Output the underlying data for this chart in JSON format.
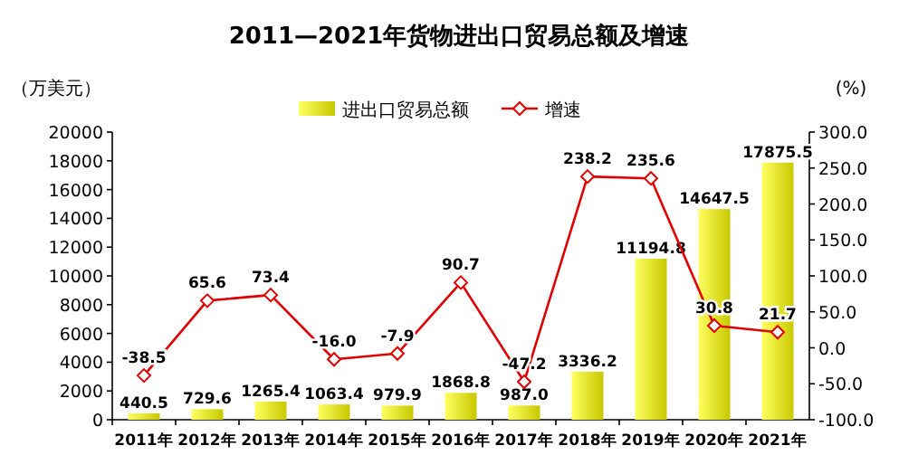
{
  "chart_data": {
    "type": "bar",
    "title": "2011—2021年货物进出口贸易总额及增速",
    "ylabel": "（万美元）",
    "y2label": "(%)",
    "categories": [
      "2011年",
      "2012年",
      "2013年",
      "2014年",
      "2015年",
      "2016年",
      "2017年",
      "2018年",
      "2019年",
      "2020年",
      "2021年"
    ],
    "series": [
      {
        "name": "进出口贸易总额",
        "color": "#c8c800",
        "values": [
          440.5,
          729.6,
          1265.4,
          1063.4,
          979.9,
          1868.8,
          987.0,
          3336.2,
          11194.8,
          14647.5,
          17875.5
        ],
        "value_labels": [
          "440.5",
          "729.6",
          "1265.4",
          "1063.4",
          "979.9",
          "1868.8",
          "987.0",
          "3336.2",
          "11194.8",
          "14647.5",
          "17875.5"
        ]
      },
      {
        "name": "增速",
        "type": "line",
        "axis": "y2",
        "color": "#e00000",
        "values": [
          -38.5,
          65.6,
          73.4,
          -16.0,
          -7.9,
          90.7,
          -47.2,
          238.2,
          235.6,
          30.8,
          21.7
        ],
        "value_labels": [
          "-38.5",
          "65.6",
          "73.4",
          "-16.0",
          "-7.9",
          "90.7",
          "-47.2",
          "238.2",
          "235.6",
          "30.8",
          "21.7"
        ]
      }
    ],
    "ylim": [
      0,
      20000
    ],
    "yticks": [
      0,
      2000,
      4000,
      6000,
      8000,
      10000,
      12000,
      14000,
      16000,
      18000,
      20000
    ],
    "y2lim": [
      -100,
      300
    ],
    "y2ticks": [
      {
        "value": -100,
        "label": "-100.0"
      },
      {
        "value": -50,
        "label": "-50.0"
      },
      {
        "value": 0,
        "label": "0.0"
      },
      {
        "value": 50,
        "label": "50.0"
      },
      {
        "value": 100,
        "label": "100.0"
      },
      {
        "value": 150,
        "label": "150.0"
      },
      {
        "value": 200,
        "label": "200.0"
      },
      {
        "value": 250,
        "label": "250.0"
      },
      {
        "value": 300,
        "label": "300.0"
      }
    ],
    "legend": "top",
    "marker": "diamond",
    "line_style": "solid",
    "grid": false
  }
}
